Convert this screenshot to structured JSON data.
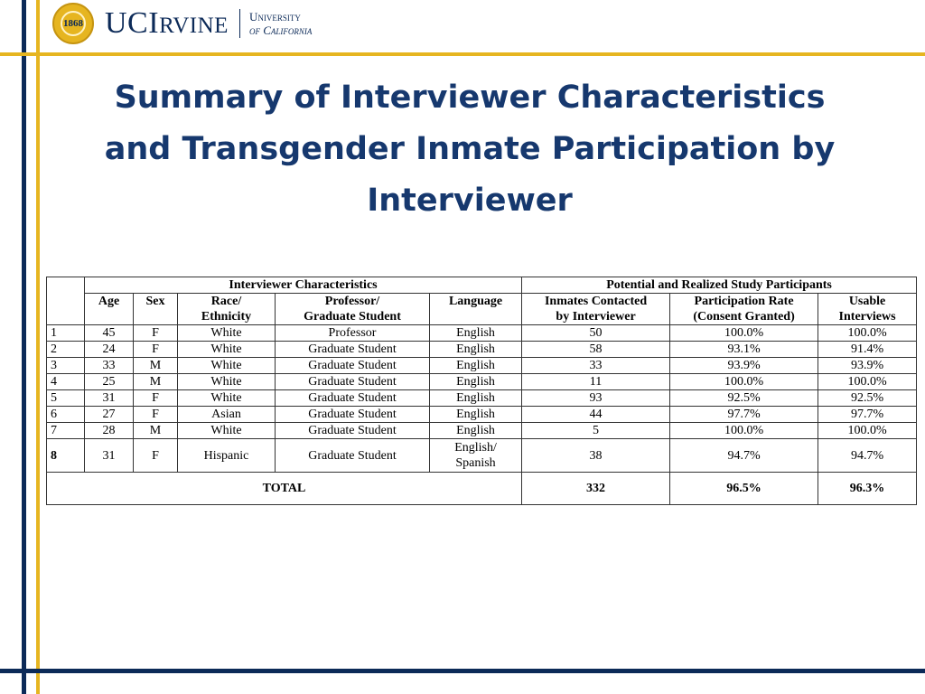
{
  "header": {
    "logo_text_large1": "UC",
    "logo_text_large2": "I",
    "logo_text_small": "RVINE",
    "university_line1": "University",
    "university_line2": "of California",
    "accent_gold": "#e6b520",
    "accent_navy": "#0c2a58"
  },
  "slide": {
    "title_line1": "Summary of Interviewer Characteristics",
    "title_line2": "and Transgender Inmate Participation by",
    "title_line3": "Interviewer"
  },
  "table": {
    "group_headers": {
      "interviewer": "Interviewer Characteristics",
      "participants": "Potential and Realized Study Participants"
    },
    "columns": {
      "age": "Age",
      "sex": "Sex",
      "race_1": "Race/",
      "race_2": "Ethnicity",
      "role_1": "Professor/",
      "role_2": "Graduate Student",
      "language": "Language",
      "contacted_1": "Inmates Contacted",
      "contacted_2": "by Interviewer",
      "rate_1": "Participation Rate",
      "rate_2": "(Consent Granted)",
      "usable_1": "Usable",
      "usable_2": "Interviews"
    },
    "rows": [
      {
        "id": "1",
        "age": "45",
        "sex": "F",
        "race": "White",
        "role": "Professor",
        "language": "English",
        "contacted": "50",
        "rate": "100.0%",
        "usable": "100.0%"
      },
      {
        "id": "2",
        "age": "24",
        "sex": "F",
        "race": "White",
        "role": "Graduate Student",
        "language": "English",
        "contacted": "58",
        "rate": "93.1%",
        "usable": "91.4%"
      },
      {
        "id": "3",
        "age": "33",
        "sex": "M",
        "race": "White",
        "role": "Graduate Student",
        "language": "English",
        "contacted": "33",
        "rate": "93.9%",
        "usable": "93.9%"
      },
      {
        "id": "4",
        "age": "25",
        "sex": "M",
        "race": "White",
        "role": "Graduate Student",
        "language": "English",
        "contacted": "11",
        "rate": "100.0%",
        "usable": "100.0%"
      },
      {
        "id": "5",
        "age": "31",
        "sex": "F",
        "race": "White",
        "role": "Graduate Student",
        "language": "English",
        "contacted": "93",
        "rate": "92.5%",
        "usable": "92.5%"
      },
      {
        "id": "6",
        "age": "27",
        "sex": "F",
        "race": "Asian",
        "role": "Graduate Student",
        "language": "English",
        "contacted": "44",
        "rate": "97.7%",
        "usable": "97.7%"
      },
      {
        "id": "7",
        "age": "28",
        "sex": "M",
        "race": "White",
        "role": "Graduate Student",
        "language": "English",
        "contacted": "5",
        "rate": "100.0%",
        "usable": "100.0%"
      },
      {
        "id": "8",
        "age": "31",
        "sex": "F",
        "race": "Hispanic",
        "role": "Graduate Student",
        "language_1": "English/",
        "language_2": "Spanish",
        "contacted": "38",
        "rate": "94.7%",
        "usable": "94.7%"
      }
    ],
    "total": {
      "label": "TOTAL",
      "contacted": "332",
      "rate": "96.5%",
      "usable": "96.3%"
    }
  }
}
